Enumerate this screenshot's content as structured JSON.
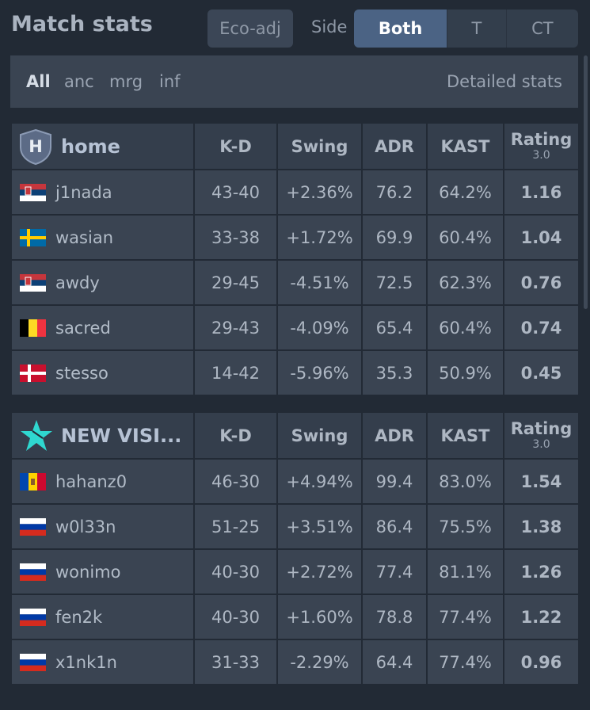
{
  "header": {
    "title": "Match stats",
    "eco_label": "Eco-adj",
    "side_label": "Side",
    "side_options": [
      "Both",
      "T",
      "CT"
    ]
  },
  "maps": {
    "items": [
      "All",
      "anc",
      "mrg",
      "inf"
    ],
    "detailed_label": "Detailed stats"
  },
  "columns": {
    "kd": "K-D",
    "swing": "Swing",
    "adr": "ADR",
    "kast": "KAST",
    "rating": "Rating",
    "rating_version": "3.0"
  },
  "teams": [
    {
      "name": "home",
      "logo_letter": "H",
      "players": [
        {
          "name": "j1nada",
          "flag": "serbia-flag",
          "kd": "43-40",
          "swing": "+2.36%",
          "adr": "76.2",
          "kast": "64.2%",
          "rating": "1.16"
        },
        {
          "name": "wasian",
          "flag": "sweden-flag",
          "kd": "33-38",
          "swing": "+1.72%",
          "adr": "69.9",
          "kast": "60.4%",
          "rating": "1.04"
        },
        {
          "name": "awdy",
          "flag": "serbia-flag",
          "kd": "29-45",
          "swing": "-4.51%",
          "adr": "72.5",
          "kast": "62.3%",
          "rating": "0.76"
        },
        {
          "name": "sacred",
          "flag": "belgium-flag",
          "kd": "29-43",
          "swing": "-4.09%",
          "adr": "65.4",
          "kast": "60.4%",
          "rating": "0.74"
        },
        {
          "name": "stesso",
          "flag": "denmark-flag",
          "kd": "14-42",
          "swing": "-5.96%",
          "adr": "35.3",
          "kast": "50.9%",
          "rating": "0.45"
        }
      ]
    },
    {
      "name": "NEW VISI...",
      "logo_letter": "",
      "players": [
        {
          "name": "hahanz0",
          "flag": "moldova-flag",
          "kd": "46-30",
          "swing": "+4.94%",
          "adr": "99.4",
          "kast": "83.0%",
          "rating": "1.54"
        },
        {
          "name": "w0l33n",
          "flag": "russia-flag",
          "kd": "51-25",
          "swing": "+3.51%",
          "adr": "86.4",
          "kast": "75.5%",
          "rating": "1.38"
        },
        {
          "name": "wonimo",
          "flag": "russia-flag",
          "kd": "40-30",
          "swing": "+2.72%",
          "adr": "77.4",
          "kast": "81.1%",
          "rating": "1.26"
        },
        {
          "name": "fen2k",
          "flag": "russia-flag",
          "kd": "40-30",
          "swing": "+1.60%",
          "adr": "78.8",
          "kast": "77.4%",
          "rating": "1.22"
        },
        {
          "name": "x1nk1n",
          "flag": "russia-flag",
          "kd": "31-33",
          "swing": "-2.29%",
          "adr": "64.4",
          "kast": "77.4%",
          "rating": "0.96"
        }
      ]
    }
  ],
  "colors": {
    "positive": "#25c13a",
    "negative": "#e23a3a",
    "rating_good": "#2fd13f",
    "rating_bad": "#f04545",
    "rating_neutral": "#d9dee5",
    "active_segment": "#4b6384",
    "team2_logo": "#2fd8d0"
  }
}
